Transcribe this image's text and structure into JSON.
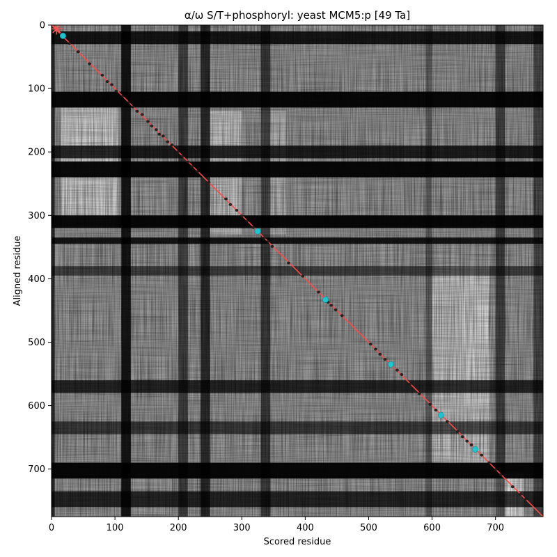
{
  "chart_data": {
    "type": "heatmap",
    "title": "α/ω S/T+phosphoryl: yeast MCM5:p [49 Ta]",
    "xlabel": "Scored residue",
    "ylabel": "Aligned residue",
    "xlim": [
      0,
      775
    ],
    "ylim": [
      775,
      0
    ],
    "x_ticks": [
      0,
      100,
      200,
      300,
      400,
      500,
      600,
      700
    ],
    "y_ticks": [
      0,
      100,
      200,
      300,
      400,
      500,
      600,
      700
    ],
    "colormap": "grayscale",
    "diagonal_line_color": "#ff4a4a",
    "dark_row_bands": [
      [
        10,
        30,
        0.85
      ],
      [
        105,
        130,
        0.95
      ],
      [
        190,
        210,
        0.8
      ],
      [
        215,
        240,
        0.95
      ],
      [
        300,
        320,
        0.95
      ],
      [
        335,
        345,
        0.85
      ],
      [
        380,
        395,
        0.55
      ],
      [
        560,
        580,
        0.75
      ],
      [
        625,
        645,
        0.6
      ],
      [
        690,
        715,
        0.95
      ],
      [
        735,
        760,
        0.75
      ]
    ],
    "dark_column_bands": [
      [
        0,
        5,
        0.7
      ],
      [
        110,
        125,
        0.85
      ],
      [
        200,
        215,
        0.55
      ],
      [
        235,
        250,
        0.7
      ],
      [
        330,
        345,
        0.6
      ],
      [
        590,
        600,
        0.35
      ],
      [
        700,
        715,
        0.55
      ],
      [
        760,
        775,
        0.5
      ]
    ],
    "light_blocks": [
      [
        15,
        105,
        130,
        320,
        0.55
      ],
      [
        250,
        300,
        135,
        330,
        0.45
      ],
      [
        330,
        370,
        135,
        330,
        0.3
      ],
      [
        600,
        690,
        380,
        700,
        0.45
      ],
      [
        650,
        690,
        380,
        600,
        0.25
      ],
      [
        700,
        745,
        705,
        775,
        0.7
      ]
    ],
    "black_points": [
      [
        15,
        14
      ],
      [
        28,
        29
      ],
      [
        42,
        42
      ],
      [
        60,
        61
      ],
      [
        80,
        79
      ],
      [
        88,
        89
      ],
      [
        95,
        94
      ],
      [
        102,
        104
      ],
      [
        112,
        112
      ],
      [
        122,
        122
      ],
      [
        128,
        129
      ],
      [
        135,
        136
      ],
      [
        143,
        141
      ],
      [
        152,
        152
      ],
      [
        158,
        159
      ],
      [
        165,
        165
      ],
      [
        170,
        172
      ],
      [
        176,
        175
      ],
      [
        183,
        184
      ],
      [
        190,
        189
      ],
      [
        199,
        200
      ],
      [
        206,
        207
      ],
      [
        215,
        216
      ],
      [
        222,
        223
      ],
      [
        230,
        231
      ],
      [
        248,
        248
      ],
      [
        275,
        274
      ],
      [
        282,
        283
      ],
      [
        292,
        292
      ],
      [
        300,
        301
      ],
      [
        308,
        309
      ],
      [
        318,
        319
      ],
      [
        335,
        336
      ],
      [
        342,
        341
      ],
      [
        348,
        349
      ],
      [
        374,
        375
      ],
      [
        396,
        396
      ],
      [
        421,
        421
      ],
      [
        436,
        437
      ],
      [
        441,
        442
      ],
      [
        448,
        449
      ],
      [
        458,
        458
      ],
      [
        503,
        503
      ],
      [
        511,
        511
      ],
      [
        518,
        519
      ],
      [
        526,
        527
      ],
      [
        545,
        544
      ],
      [
        552,
        551
      ],
      [
        565,
        566
      ],
      [
        580,
        581
      ],
      [
        597,
        598
      ],
      [
        606,
        607
      ],
      [
        624,
        625
      ],
      [
        640,
        641
      ],
      [
        648,
        649
      ],
      [
        655,
        656
      ],
      [
        662,
        662
      ],
      [
        678,
        678
      ],
      [
        690,
        690
      ],
      [
        700,
        701
      ],
      [
        708,
        709
      ],
      [
        727,
        728
      ],
      [
        739,
        740
      ],
      [
        748,
        747
      ]
    ],
    "cyan_points": [
      [
        18,
        17
      ],
      [
        325,
        325
      ],
      [
        432,
        433
      ],
      [
        535,
        535
      ],
      [
        614,
        615
      ],
      [
        668,
        669
      ]
    ],
    "red_marker": [
      8,
      6
    ]
  }
}
